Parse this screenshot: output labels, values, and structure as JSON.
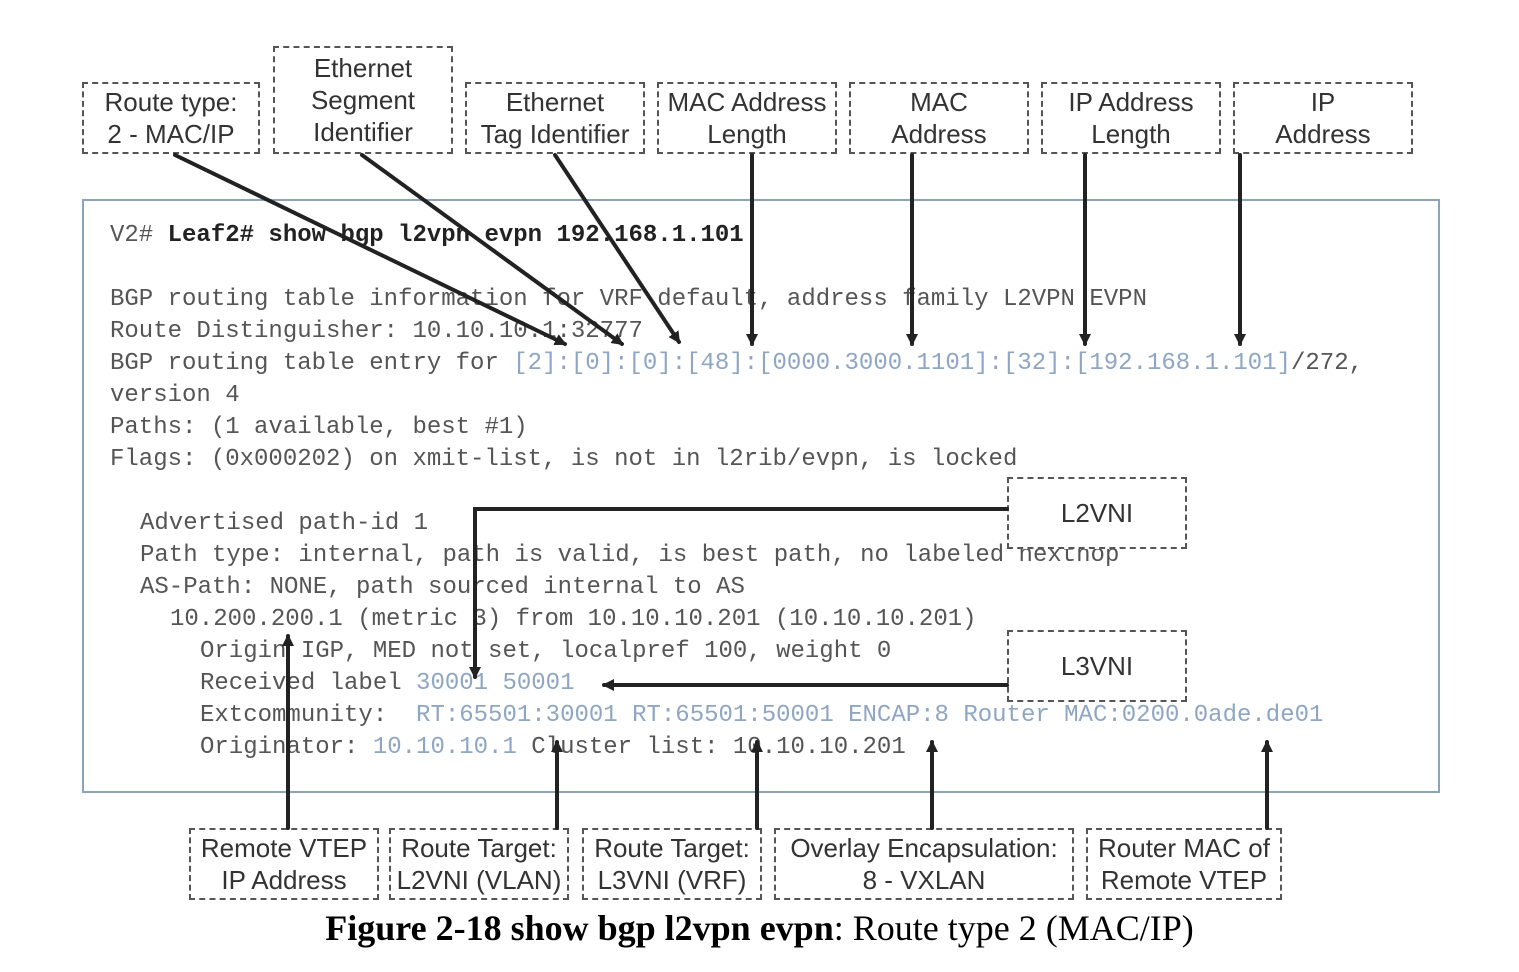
{
  "callouts_top": {
    "route_type": [
      "Route type:",
      "2 - MAC/IP"
    ],
    "ethernet_segment_identifier": [
      "Ethernet",
      "Segment",
      "Identifier"
    ],
    "ethernet_tag_identifier": [
      "Ethernet",
      "Tag Identifier"
    ],
    "mac_address_length": [
      "MAC Address",
      "Length"
    ],
    "mac_address": [
      "MAC",
      "Address"
    ],
    "ip_address_length": [
      "IP Address",
      "Length"
    ],
    "ip_address": [
      "IP",
      "Address"
    ]
  },
  "callouts_right": {
    "l2vni": "L2VNI",
    "l3vni": "L3VNI"
  },
  "callouts_bottom": {
    "remote_vtep_ip": [
      "Remote VTEP",
      "IP Address"
    ],
    "route_target_l2vni": [
      "Route Target:",
      "L2VNI (VLAN)"
    ],
    "route_target_l3vni": [
      "Route Target:",
      "L3VNI (VRF)"
    ],
    "overlay_encapsulation": [
      "Overlay Encapsulation:",
      "8 - VXLAN"
    ],
    "router_mac": [
      "Router MAC of",
      "Remote VTEP"
    ]
  },
  "terminal": {
    "prompt_prefix": "V2# ",
    "command": "Leaf2# show bgp l2vpn evpn 192.168.1.101",
    "line_bgp_info": "BGP routing table information for VRF default, address family L2VPN EVPN",
    "line_rd": "Route Distinguisher: 10.10.10.1:32777",
    "entry_prefix": "BGP routing table entry for ",
    "entry_route": "[2]:[0]:[0]:[48]:[0000.3000.1101]:[32]:[192.168.1.101]",
    "entry_suffix": "/272,",
    "line_version": "version 4",
    "line_paths": "Paths: (1 available, best #1)",
    "line_flags": "Flags: (0x000202) on xmit-list, is not in l2rib/evpn, is locked",
    "line_advertised": "Advertised path-id 1",
    "line_path_type": "Path type: internal, path is valid, is best path, no labeled nexthop",
    "line_as_path": "AS-Path: NONE, path sourced internal to AS",
    "line_nexthop": "10.200.200.1 (metric 3) from 10.10.10.201 (10.10.10.201)",
    "line_origin": "Origin IGP, MED not set, localpref 100, weight 0",
    "received_prefix": "Received label ",
    "received_labels": "30001 50001",
    "extcomm_prefix": "Extcommunity:  ",
    "extcomm_value": "RT:65501:30001 RT:65501:50001 ENCAP:8 Router MAC:0200.0ade.de01",
    "originator_prefix": "Originator: ",
    "originator_value": "10.10.10.1",
    "cluster_text": " Cluster list: 10.10.10.201"
  },
  "caption": {
    "bold": "Figure 2-18 show bgp l2vpn evpn",
    "rest": ": Route type 2 (MAC/IP)"
  },
  "colors": {
    "highlight_text": "#8ea6c3",
    "terminal_border": "#8aa4bb",
    "arrow": "#222222",
    "callout_border": "#555555"
  }
}
